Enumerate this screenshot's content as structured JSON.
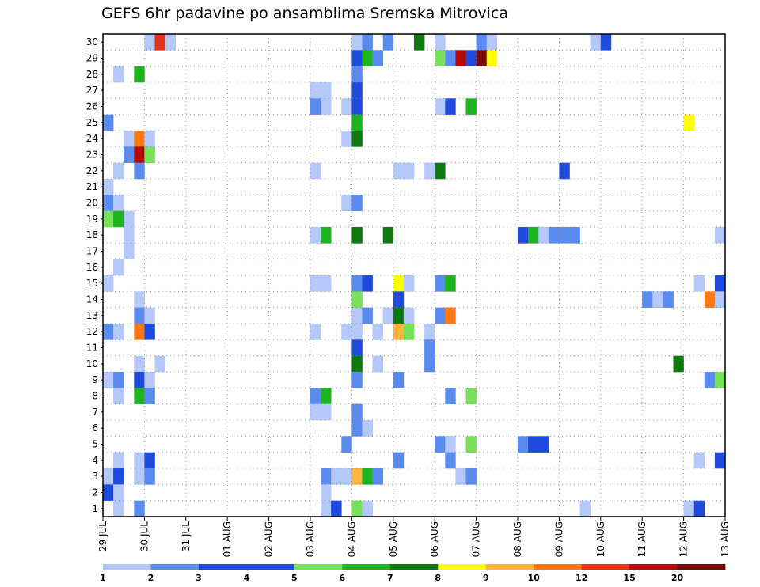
{
  "chart_data": {
    "type": "heatmap",
    "title": "GEFS 6hr padavine po ansamblima Sremska Mitrovica",
    "y_ticks": [
      "1",
      "2",
      "3",
      "4",
      "5",
      "6",
      "7",
      "8",
      "9",
      "10",
      "11",
      "12",
      "13",
      "14",
      "15",
      "16",
      "17",
      "18",
      "19",
      "20",
      "21",
      "22",
      "23",
      "24",
      "25",
      "26",
      "27",
      "28",
      "29",
      "30"
    ],
    "x_ticks": [
      "29 JUL",
      "30 JUL",
      "31 JUL",
      "01 AUG",
      "02 AUG",
      "03 AUG",
      "04 AUG",
      "05 AUG",
      "06 AUG",
      "07 AUG",
      "08 AUG",
      "09 AUG",
      "10 AUG",
      "11 AUG",
      "12 AUG",
      "13 AUG"
    ],
    "grid": true,
    "legend": {
      "placement": "bottom",
      "labels": [
        "1",
        "2",
        "3",
        "4",
        "5",
        "6",
        "7",
        "8",
        "9",
        "10",
        "12",
        "15",
        "20"
      ],
      "colors": [
        "#b4c8fa",
        "#5a8cf0",
        "#1e4bdc",
        "#1e4bdc",
        "#78e15a",
        "#1eb41e",
        "#0f780f",
        "#ffff00",
        "#ffb43c",
        "#ff7814",
        "#e63214",
        "#b40a0a",
        "#780a0a"
      ]
    },
    "colors": {
      "c1": "#b4c8fa",
      "c2": "#5a8cf0",
      "c3": "#1e4bdc",
      "c5": "#78e15a",
      "c6": "#1eb41e",
      "c7": "#0f780f",
      "c8": "#ffff00",
      "c9": "#ffb43c",
      "c10": "#ff7814",
      "c12": "#e63214",
      "c15": "#b40a0a",
      "c20": "#780a0a"
    },
    "cells": [
      {
        "m": 30,
        "t": 4,
        "c": "c1"
      },
      {
        "m": 30,
        "t": 5,
        "c": "c12"
      },
      {
        "m": 30,
        "t": 6,
        "c": "c1"
      },
      {
        "m": 30,
        "t": 24,
        "c": "c1"
      },
      {
        "m": 30,
        "t": 25,
        "c": "c2"
      },
      {
        "m": 30,
        "t": 27,
        "c": "c2"
      },
      {
        "m": 30,
        "t": 30,
        "c": "c7"
      },
      {
        "m": 30,
        "t": 32,
        "c": "c1"
      },
      {
        "m": 30,
        "t": 36,
        "c": "c2"
      },
      {
        "m": 30,
        "t": 37,
        "c": "c1"
      },
      {
        "m": 30,
        "t": 47,
        "c": "c1"
      },
      {
        "m": 30,
        "t": 48,
        "c": "c3"
      },
      {
        "m": 29,
        "t": 24,
        "c": "c3"
      },
      {
        "m": 29,
        "t": 25,
        "c": "c6"
      },
      {
        "m": 29,
        "t": 26,
        "c": "c2"
      },
      {
        "m": 29,
        "t": 32,
        "c": "c5"
      },
      {
        "m": 29,
        "t": 33,
        "c": "c2"
      },
      {
        "m": 29,
        "t": 34,
        "c": "c15"
      },
      {
        "m": 29,
        "t": 35,
        "c": "c3"
      },
      {
        "m": 29,
        "t": 36,
        "c": "c20"
      },
      {
        "m": 29,
        "t": 37,
        "c": "c8"
      },
      {
        "m": 28,
        "t": 1,
        "c": "c1"
      },
      {
        "m": 28,
        "t": 3,
        "c": "c6"
      },
      {
        "m": 28,
        "t": 24,
        "c": "c2"
      },
      {
        "m": 27,
        "t": 20,
        "c": "c1"
      },
      {
        "m": 27,
        "t": 21,
        "c": "c1"
      },
      {
        "m": 27,
        "t": 24,
        "c": "c3"
      },
      {
        "m": 26,
        "t": 20,
        "c": "c2"
      },
      {
        "m": 26,
        "t": 21,
        "c": "c1"
      },
      {
        "m": 26,
        "t": 23,
        "c": "c1"
      },
      {
        "m": 26,
        "t": 24,
        "c": "c3"
      },
      {
        "m": 26,
        "t": 32,
        "c": "c1"
      },
      {
        "m": 26,
        "t": 33,
        "c": "c3"
      },
      {
        "m": 26,
        "t": 35,
        "c": "c6"
      },
      {
        "m": 25,
        "t": 0,
        "c": "c2"
      },
      {
        "m": 25,
        "t": 24,
        "c": "c6"
      },
      {
        "m": 25,
        "t": 56,
        "c": "c8"
      },
      {
        "m": 24,
        "t": 2,
        "c": "c1"
      },
      {
        "m": 24,
        "t": 3,
        "c": "c10"
      },
      {
        "m": 24,
        "t": 4,
        "c": "c1"
      },
      {
        "m": 24,
        "t": 23,
        "c": "c1"
      },
      {
        "m": 24,
        "t": 24,
        "c": "c7"
      },
      {
        "m": 23,
        "t": 2,
        "c": "c2"
      },
      {
        "m": 23,
        "t": 3,
        "c": "c15"
      },
      {
        "m": 23,
        "t": 4,
        "c": "c5"
      },
      {
        "m": 22,
        "t": 1,
        "c": "c1"
      },
      {
        "m": 22,
        "t": 3,
        "c": "c2"
      },
      {
        "m": 22,
        "t": 20,
        "c": "c1"
      },
      {
        "m": 22,
        "t": 28,
        "c": "c1"
      },
      {
        "m": 22,
        "t": 29,
        "c": "c1"
      },
      {
        "m": 22,
        "t": 31,
        "c": "c1"
      },
      {
        "m": 22,
        "t": 32,
        "c": "c7"
      },
      {
        "m": 22,
        "t": 44,
        "c": "c3"
      },
      {
        "m": 21,
        "t": 0,
        "c": "c1"
      },
      {
        "m": 20,
        "t": 0,
        "c": "c2"
      },
      {
        "m": 20,
        "t": 1,
        "c": "c1"
      },
      {
        "m": 20,
        "t": 23,
        "c": "c1"
      },
      {
        "m": 20,
        "t": 24,
        "c": "c2"
      },
      {
        "m": 19,
        "t": 0,
        "c": "c5"
      },
      {
        "m": 19,
        "t": 1,
        "c": "c6"
      },
      {
        "m": 19,
        "t": 2,
        "c": "c1"
      },
      {
        "m": 18,
        "t": 2,
        "c": "c1"
      },
      {
        "m": 18,
        "t": 20,
        "c": "c1"
      },
      {
        "m": 18,
        "t": 21,
        "c": "c6"
      },
      {
        "m": 18,
        "t": 24,
        "c": "c7"
      },
      {
        "m": 18,
        "t": 27,
        "c": "c7"
      },
      {
        "m": 18,
        "t": 40,
        "c": "c3"
      },
      {
        "m": 18,
        "t": 41,
        "c": "c6"
      },
      {
        "m": 18,
        "t": 42,
        "c": "c1"
      },
      {
        "m": 18,
        "t": 43,
        "c": "c2"
      },
      {
        "m": 18,
        "t": 44,
        "c": "c2"
      },
      {
        "m": 18,
        "t": 45,
        "c": "c2"
      },
      {
        "m": 18,
        "t": 59,
        "c": "c1"
      },
      {
        "m": 17,
        "t": 2,
        "c": "c1"
      },
      {
        "m": 16,
        "t": 1,
        "c": "c1"
      },
      {
        "m": 15,
        "t": 0,
        "c": "c1"
      },
      {
        "m": 15,
        "t": 20,
        "c": "c1"
      },
      {
        "m": 15,
        "t": 21,
        "c": "c1"
      },
      {
        "m": 15,
        "t": 24,
        "c": "c2"
      },
      {
        "m": 15,
        "t": 25,
        "c": "c3"
      },
      {
        "m": 15,
        "t": 28,
        "c": "c8"
      },
      {
        "m": 15,
        "t": 29,
        "c": "c1"
      },
      {
        "m": 15,
        "t": 32,
        "c": "c2"
      },
      {
        "m": 15,
        "t": 33,
        "c": "c6"
      },
      {
        "m": 15,
        "t": 57,
        "c": "c1"
      },
      {
        "m": 15,
        "t": 59,
        "c": "c3"
      },
      {
        "m": 14,
        "t": 3,
        "c": "c1"
      },
      {
        "m": 14,
        "t": 24,
        "c": "c5"
      },
      {
        "m": 14,
        "t": 28,
        "c": "c3"
      },
      {
        "m": 14,
        "t": 52,
        "c": "c2"
      },
      {
        "m": 14,
        "t": 53,
        "c": "c1"
      },
      {
        "m": 14,
        "t": 54,
        "c": "c2"
      },
      {
        "m": 14,
        "t": 58,
        "c": "c10"
      },
      {
        "m": 14,
        "t": 59,
        "c": "c1"
      },
      {
        "m": 13,
        "t": 3,
        "c": "c2"
      },
      {
        "m": 13,
        "t": 4,
        "c": "c1"
      },
      {
        "m": 13,
        "t": 24,
        "c": "c1"
      },
      {
        "m": 13,
        "t": 25,
        "c": "c2"
      },
      {
        "m": 13,
        "t": 27,
        "c": "c1"
      },
      {
        "m": 13,
        "t": 28,
        "c": "c7"
      },
      {
        "m": 13,
        "t": 29,
        "c": "c1"
      },
      {
        "m": 13,
        "t": 32,
        "c": "c2"
      },
      {
        "m": 13,
        "t": 33,
        "c": "c10"
      },
      {
        "m": 12,
        "t": 0,
        "c": "c2"
      },
      {
        "m": 12,
        "t": 1,
        "c": "c1"
      },
      {
        "m": 12,
        "t": 3,
        "c": "c10"
      },
      {
        "m": 12,
        "t": 4,
        "c": "c3"
      },
      {
        "m": 12,
        "t": 20,
        "c": "c1"
      },
      {
        "m": 12,
        "t": 23,
        "c": "c1"
      },
      {
        "m": 12,
        "t": 24,
        "c": "c1"
      },
      {
        "m": 12,
        "t": 26,
        "c": "c1"
      },
      {
        "m": 12,
        "t": 28,
        "c": "c9"
      },
      {
        "m": 12,
        "t": 29,
        "c": "c5"
      },
      {
        "m": 12,
        "t": 31,
        "c": "c1"
      },
      {
        "m": 11,
        "t": 24,
        "c": "c3"
      },
      {
        "m": 11,
        "t": 31,
        "c": "c2"
      },
      {
        "m": 10,
        "t": 3,
        "c": "c1"
      },
      {
        "m": 10,
        "t": 5,
        "c": "c1"
      },
      {
        "m": 10,
        "t": 24,
        "c": "c7"
      },
      {
        "m": 10,
        "t": 26,
        "c": "c1"
      },
      {
        "m": 10,
        "t": 31,
        "c": "c2"
      },
      {
        "m": 10,
        "t": 55,
        "c": "c7"
      },
      {
        "m": 9,
        "t": 0,
        "c": "c1"
      },
      {
        "m": 9,
        "t": 1,
        "c": "c2"
      },
      {
        "m": 9,
        "t": 3,
        "c": "c3"
      },
      {
        "m": 9,
        "t": 4,
        "c": "c1"
      },
      {
        "m": 9,
        "t": 24,
        "c": "c2"
      },
      {
        "m": 9,
        "t": 28,
        "c": "c2"
      },
      {
        "m": 9,
        "t": 58,
        "c": "c2"
      },
      {
        "m": 9,
        "t": 59,
        "c": "c5"
      },
      {
        "m": 8,
        "t": 1,
        "c": "c1"
      },
      {
        "m": 8,
        "t": 3,
        "c": "c6"
      },
      {
        "m": 8,
        "t": 4,
        "c": "c2"
      },
      {
        "m": 8,
        "t": 20,
        "c": "c2"
      },
      {
        "m": 8,
        "t": 21,
        "c": "c6"
      },
      {
        "m": 8,
        "t": 33,
        "c": "c2"
      },
      {
        "m": 8,
        "t": 35,
        "c": "c5"
      },
      {
        "m": 7,
        "t": 20,
        "c": "c1"
      },
      {
        "m": 7,
        "t": 21,
        "c": "c1"
      },
      {
        "m": 7,
        "t": 24,
        "c": "c2"
      },
      {
        "m": 6,
        "t": 24,
        "c": "c2"
      },
      {
        "m": 6,
        "t": 25,
        "c": "c1"
      },
      {
        "m": 5,
        "t": 23,
        "c": "c2"
      },
      {
        "m": 5,
        "t": 32,
        "c": "c2"
      },
      {
        "m": 5,
        "t": 33,
        "c": "c1"
      },
      {
        "m": 5,
        "t": 35,
        "c": "c5"
      },
      {
        "m": 5,
        "t": 40,
        "c": "c2"
      },
      {
        "m": 5,
        "t": 41,
        "c": "c3"
      },
      {
        "m": 5,
        "t": 42,
        "c": "c3"
      },
      {
        "m": 4,
        "t": 1,
        "c": "c1"
      },
      {
        "m": 4,
        "t": 3,
        "c": "c1"
      },
      {
        "m": 4,
        "t": 4,
        "c": "c3"
      },
      {
        "m": 4,
        "t": 28,
        "c": "c2"
      },
      {
        "m": 4,
        "t": 33,
        "c": "c2"
      },
      {
        "m": 4,
        "t": 57,
        "c": "c1"
      },
      {
        "m": 4,
        "t": 59,
        "c": "c3"
      },
      {
        "m": 3,
        "t": 0,
        "c": "c1"
      },
      {
        "m": 3,
        "t": 1,
        "c": "c3"
      },
      {
        "m": 3,
        "t": 3,
        "c": "c1"
      },
      {
        "m": 3,
        "t": 4,
        "c": "c2"
      },
      {
        "m": 3,
        "t": 21,
        "c": "c2"
      },
      {
        "m": 3,
        "t": 22,
        "c": "c1"
      },
      {
        "m": 3,
        "t": 23,
        "c": "c1"
      },
      {
        "m": 3,
        "t": 24,
        "c": "c9"
      },
      {
        "m": 3,
        "t": 25,
        "c": "c6"
      },
      {
        "m": 3,
        "t": 26,
        "c": "c2"
      },
      {
        "m": 3,
        "t": 34,
        "c": "c1"
      },
      {
        "m": 3,
        "t": 35,
        "c": "c2"
      },
      {
        "m": 2,
        "t": 0,
        "c": "c3"
      },
      {
        "m": 2,
        "t": 1,
        "c": "c1"
      },
      {
        "m": 2,
        "t": 21,
        "c": "c1"
      },
      {
        "m": 1,
        "t": 1,
        "c": "c1"
      },
      {
        "m": 1,
        "t": 3,
        "c": "c2"
      },
      {
        "m": 1,
        "t": 21,
        "c": "c1"
      },
      {
        "m": 1,
        "t": 22,
        "c": "c3"
      },
      {
        "m": 1,
        "t": 24,
        "c": "c5"
      },
      {
        "m": 1,
        "t": 25,
        "c": "c1"
      },
      {
        "m": 1,
        "t": 46,
        "c": "c1"
      },
      {
        "m": 1,
        "t": 56,
        "c": "c1"
      },
      {
        "m": 1,
        "t": 57,
        "c": "c3"
      }
    ]
  }
}
